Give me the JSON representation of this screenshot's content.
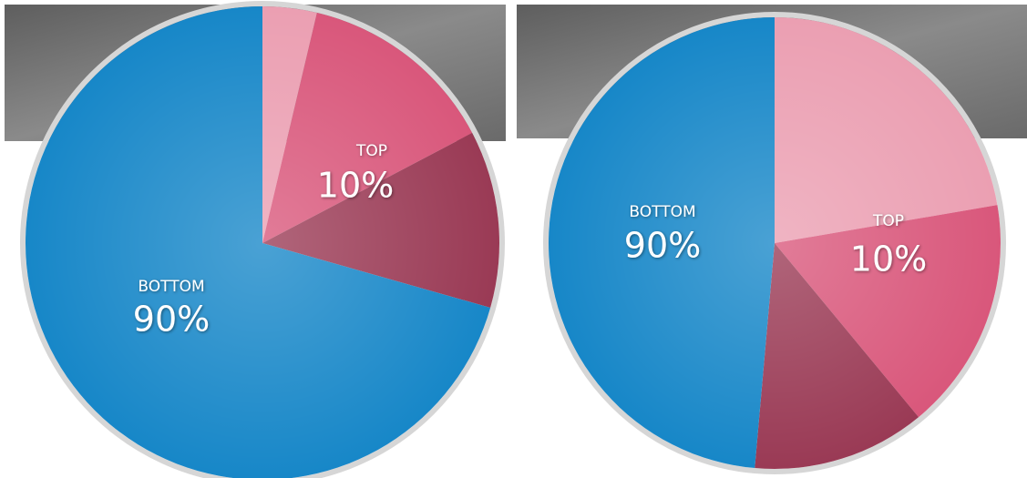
{
  "chart_data": [
    {
      "type": "pie",
      "values": [
        3.7,
        13.6,
        12.1,
        70.6
      ],
      "colors": [
        "#eb9fb2",
        "#d9577b",
        "#9a3a55",
        "#1787c8"
      ],
      "annotations": [
        "TOP",
        "10%",
        "BOTTOM",
        "90%"
      ]
    },
    {
      "type": "pie",
      "values": [
        22.3,
        16.7,
        12.4,
        48.6
      ],
      "colors": [
        "#eb9fb2",
        "#d9577b",
        "#9a3a55",
        "#1787c8"
      ],
      "annotations": [
        "TOP",
        "10%",
        "BOTTOM",
        "90%"
      ]
    }
  ]
}
